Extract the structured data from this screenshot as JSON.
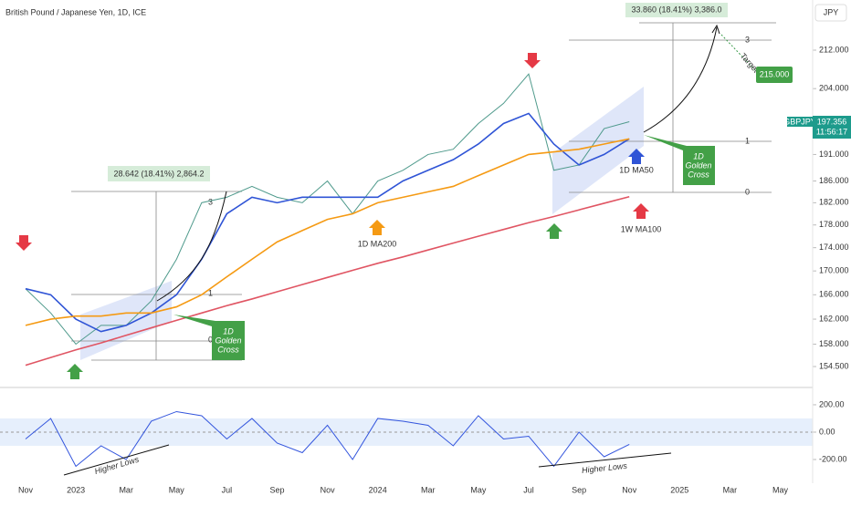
{
  "header": {
    "title": "British Pound / Japanese Yen, 1D, ICE",
    "currency": "JPY",
    "countdown": "11:56:17"
  },
  "annotations": {
    "measure_right": "33.860 (18.41%) 3,386.0",
    "measure_left": "28.642 (18.41%) 2,864.2",
    "fib_right": [
      "3",
      "1",
      "0"
    ],
    "fib_left": [
      "3",
      "1",
      "0"
    ],
    "golden_cross_left": [
      "1D",
      "Golden",
      "Cross"
    ],
    "golden_cross_right": [
      "1D",
      "Golden",
      "Cross"
    ],
    "target": "Target",
    "target_price": "215.000",
    "higher_lows_left": "Higher Lows",
    "higher_lows_right": "Higher Lows"
  },
  "chart_data": [
    {
      "type": "line",
      "yscale": "log",
      "categories": [
        "Nov",
        null,
        "2023",
        null,
        "Mar",
        null,
        "May",
        null,
        "Jul",
        null,
        "Sep",
        null,
        "Nov",
        null,
        "2024",
        null,
        "Mar",
        null,
        "May",
        null,
        "Jul",
        null,
        "Sep",
        null,
        "Nov",
        null,
        "2025",
        null,
        "Mar",
        null,
        "May",
        null
      ],
      "ylim": [
        151.3,
        222.9
      ],
      "yticks": [
        {
          "value": 212,
          "label": "212.000"
        },
        {
          "value": 204,
          "label": "204.000"
        },
        {
          "value": 191,
          "label": "191.000"
        },
        {
          "value": 186,
          "label": "186.000"
        },
        {
          "value": 182,
          "label": "182.000"
        },
        {
          "value": 178,
          "label": "178.000"
        },
        {
          "value": 174,
          "label": "174.000"
        },
        {
          "value": 170,
          "label": "170.000"
        },
        {
          "value": 166,
          "label": "166.000"
        },
        {
          "value": 162,
          "label": "162.000"
        },
        {
          "value": 158,
          "label": "158.000"
        },
        {
          "value": 154.5,
          "label": "154.500"
        }
      ],
      "series": [
        {
          "name": "GBPJPY",
          "color": "#4f9a8c",
          "values": [
            167,
            163,
            158,
            161,
            161,
            165,
            172,
            182,
            183,
            185,
            183,
            182,
            186,
            180,
            186,
            188,
            191,
            192,
            197,
            201,
            207,
            188,
            189,
            196,
            197.356,
            null,
            null,
            null,
            null,
            null,
            null,
            null
          ]
        },
        {
          "name": "1D MA50",
          "color": "#2f54d6",
          "values": [
            167,
            166,
            162,
            160,
            161,
            163,
            166,
            172,
            180,
            183,
            182,
            183,
            183,
            183,
            183,
            186,
            188,
            190,
            193,
            197,
            199,
            193,
            189,
            191,
            194,
            null,
            null,
            null,
            null,
            null,
            null,
            null
          ]
        },
        {
          "name": "1D MA200",
          "color": "#f59a13",
          "values": [
            161,
            162,
            162.5,
            162.5,
            163,
            163,
            164,
            166,
            169,
            172,
            175,
            177,
            179,
            180,
            182,
            183,
            184,
            185,
            187,
            189,
            191,
            191.5,
            192,
            193,
            194,
            null,
            null,
            null,
            null,
            null,
            null,
            null
          ]
        },
        {
          "name": "1W MA100",
          "color": "#e05563",
          "values": [
            154.7,
            155.9,
            157.1,
            158.2,
            159.4,
            160.6,
            161.8,
            163,
            164.2,
            165.3,
            166.5,
            167.7,
            168.9,
            170.1,
            171.3,
            172.4,
            173.6,
            174.8,
            176,
            177.2,
            178.4,
            179.5,
            180.7,
            181.9,
            183.1,
            null,
            null,
            null,
            null,
            null,
            null,
            null
          ]
        }
      ]
    },
    {
      "type": "line",
      "ylim": [
        -340,
        293
      ],
      "band": [
        -100,
        100
      ],
      "yticks": [
        {
          "value": 200,
          "label": "200.00"
        },
        {
          "value": 0,
          "label": "0.00"
        },
        {
          "value": -200,
          "label": "-200.00"
        }
      ],
      "series": [
        {
          "color": "#3355dd",
          "values": [
            -50,
            100,
            -250,
            -100,
            -200,
            80,
            150,
            120,
            -50,
            100,
            -80,
            -150,
            50,
            -200,
            100,
            80,
            50,
            -100,
            120,
            -50,
            -30,
            -250,
            0,
            -180,
            -90,
            null,
            null,
            null,
            null,
            null,
            null,
            null
          ]
        }
      ]
    }
  ]
}
